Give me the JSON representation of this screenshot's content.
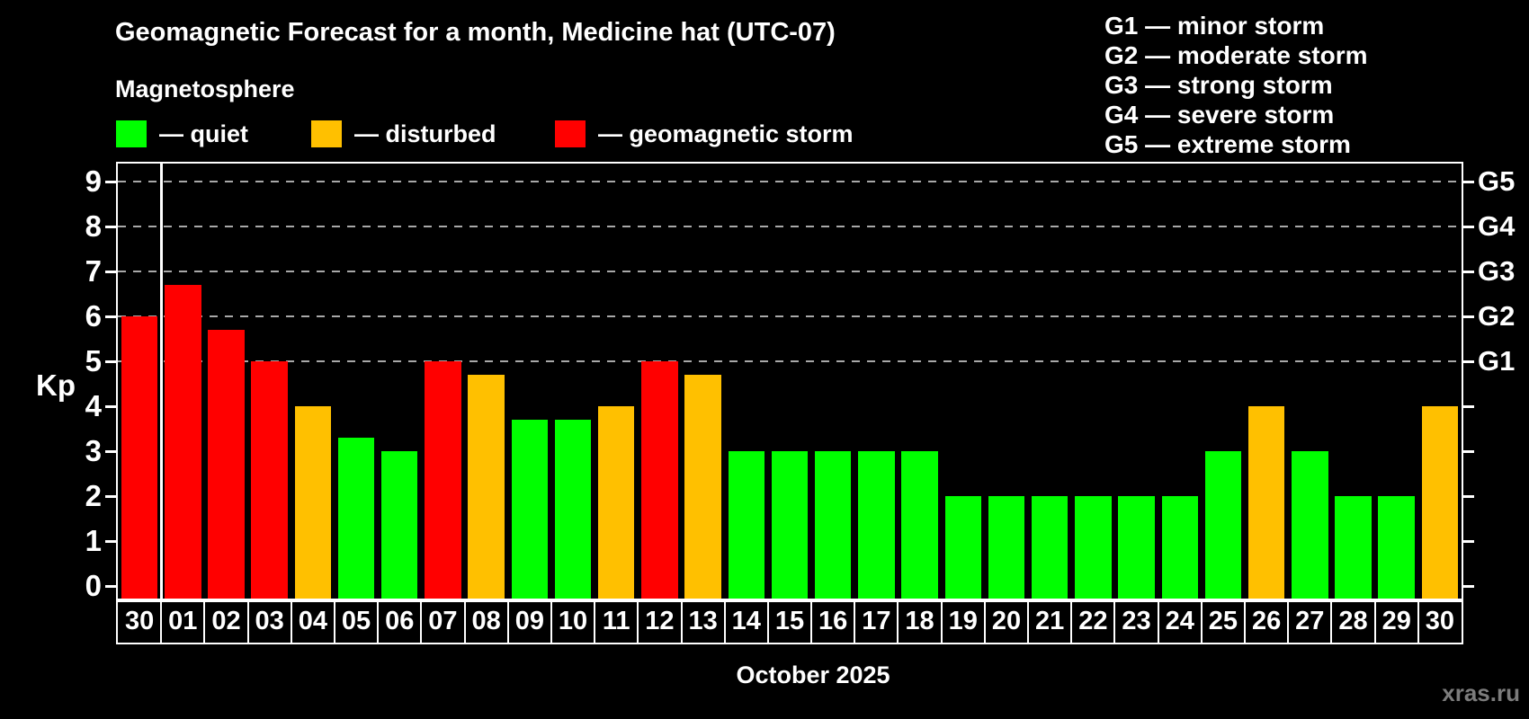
{
  "header": {
    "title": "Geomagnetic Forecast for a month, Medicine hat (UTC-07)",
    "subtitle": "Magnetosphere"
  },
  "legend": {
    "items": [
      {
        "name": "quiet",
        "label": "— quiet",
        "color": "#00ff00"
      },
      {
        "name": "disturbed",
        "label": "— disturbed",
        "color": "#ffc000"
      },
      {
        "name": "storm",
        "label": "— geomagnetic storm",
        "color": "#ff0000"
      }
    ]
  },
  "g_legend": {
    "items": [
      "G1 — minor storm",
      "G2 — moderate storm",
      "G3 — strong storm",
      "G4 — severe storm",
      "G5 — extreme storm"
    ]
  },
  "chart_data": {
    "type": "bar",
    "title": "Geomagnetic Forecast for a month, Medicine hat (UTC-07)",
    "subtitle": "Magnetosphere",
    "ylabel": "Kp",
    "xlabel": "October 2025",
    "categories": [
      "30",
      "01",
      "02",
      "03",
      "04",
      "05",
      "06",
      "07",
      "08",
      "09",
      "10",
      "11",
      "12",
      "13",
      "14",
      "15",
      "16",
      "17",
      "18",
      "19",
      "20",
      "21",
      "22",
      "23",
      "24",
      "25",
      "26",
      "27",
      "28",
      "29",
      "30"
    ],
    "values": [
      6.0,
      6.7,
      5.7,
      5.0,
      4.0,
      3.3,
      3.0,
      5.0,
      4.7,
      3.7,
      3.7,
      4.0,
      5.0,
      4.7,
      3.0,
      3.0,
      3.0,
      3.0,
      3.0,
      2.0,
      2.0,
      2.0,
      2.0,
      2.0,
      2.0,
      3.0,
      4.0,
      3.0,
      2.0,
      2.0,
      4.0
    ],
    "statuses": [
      "storm",
      "storm",
      "storm",
      "storm",
      "disturbed",
      "quiet",
      "quiet",
      "storm",
      "disturbed",
      "quiet",
      "quiet",
      "disturbed",
      "storm",
      "disturbed",
      "quiet",
      "quiet",
      "quiet",
      "quiet",
      "quiet",
      "quiet",
      "quiet",
      "quiet",
      "quiet",
      "quiet",
      "quiet",
      "quiet",
      "disturbed",
      "quiet",
      "quiet",
      "quiet",
      "disturbed"
    ],
    "status_colors": {
      "quiet": "#00ff00",
      "disturbed": "#ffc000",
      "storm": "#ff0000"
    },
    "ylim": [
      -0.32,
      9.4
    ],
    "yticks": [
      0,
      1,
      2,
      3,
      4,
      5,
      6,
      7,
      8,
      9
    ],
    "gridlines_at": [
      5,
      6,
      7,
      8,
      9
    ],
    "gridline_color": "#a8a8a8",
    "grid": "dashed horizontal lines at storm levels only",
    "right_axis_labels": [
      {
        "kp": 5,
        "label": "G1"
      },
      {
        "kp": 6,
        "label": "G2"
      },
      {
        "kp": 7,
        "label": "G3"
      },
      {
        "kp": 8,
        "label": "G4"
      },
      {
        "kp": 9,
        "label": "G5"
      }
    ],
    "month_separator_after_index": 0,
    "legend_position": "top-left"
  },
  "footer": {
    "month_label": "October 2025",
    "watermark": "xras.ru"
  }
}
